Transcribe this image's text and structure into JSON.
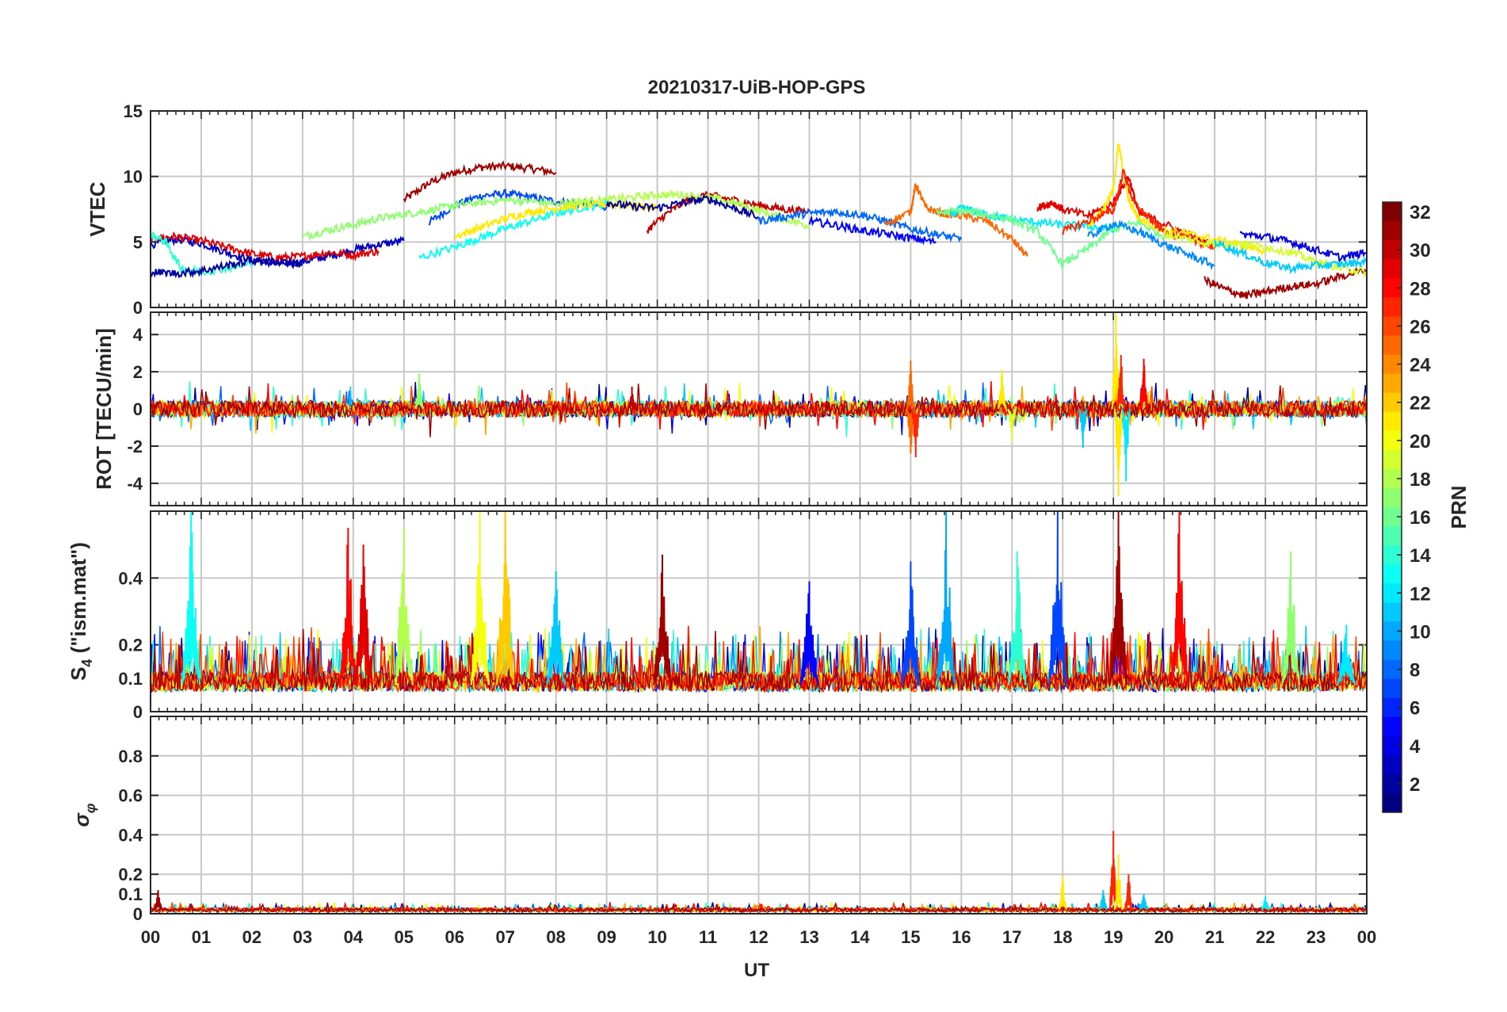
{
  "figure": {
    "title": "20210317-UiB-HOP-GPS",
    "xlabel": "UT",
    "x_tick_labels": [
      "00",
      "01",
      "02",
      "03",
      "04",
      "05",
      "06",
      "07",
      "08",
      "09",
      "10",
      "11",
      "12",
      "13",
      "14",
      "15",
      "16",
      "17",
      "18",
      "19",
      "20",
      "21",
      "22",
      "23",
      "00"
    ]
  },
  "colorbar": {
    "label": "PRN",
    "ticks": [
      2,
      4,
      6,
      8,
      10,
      12,
      14,
      16,
      18,
      20,
      22,
      24,
      26,
      28,
      30,
      32
    ],
    "range": [
      1,
      32
    ],
    "colormap": "jet"
  },
  "chart_data": [
    {
      "type": "line",
      "panel": "vtec",
      "ylabel": "VTEC",
      "xlim": [
        0,
        24
      ],
      "ylim": [
        0,
        15
      ],
      "y_ticks": [
        0,
        5,
        10,
        15
      ],
      "series": [
        {
          "prn": 31,
          "x": [
            5.0,
            5.5,
            6.0,
            6.5,
            7.0,
            7.5,
            8.0
          ],
          "y": [
            8.2,
            9.5,
            10.3,
            10.7,
            10.8,
            10.6,
            10.3
          ]
        },
        {
          "prn": 7,
          "x": [
            5.5,
            6.0,
            6.5,
            7.0,
            7.5,
            8.0,
            8.5,
            9.0
          ],
          "y": [
            6.5,
            7.8,
            8.5,
            8.7,
            8.4,
            8.1,
            7.9,
            7.7
          ]
        },
        {
          "prn": 3,
          "x": [
            0.0,
            0.5,
            1.0,
            1.5,
            2.0,
            2.5,
            3.0,
            3.5,
            4.0,
            4.5,
            5.0
          ],
          "y": [
            4.8,
            5.2,
            4.9,
            4.2,
            3.6,
            3.3,
            3.5,
            3.9,
            4.4,
            4.8,
            5.1
          ]
        },
        {
          "prn": 29,
          "x": [
            0.0,
            0.5,
            1.0,
            1.5,
            2.0,
            2.5,
            3.0,
            3.5,
            4.0,
            4.5
          ],
          "y": [
            5.3,
            5.4,
            5.1,
            4.6,
            4.1,
            3.8,
            3.9,
            4.2,
            4.0,
            4.3
          ]
        },
        {
          "prn": 17,
          "x": [
            3.0,
            3.5,
            4.0,
            4.5,
            5.0,
            5.5,
            6.0,
            6.5,
            7.0,
            7.5,
            8.0
          ],
          "y": [
            5.4,
            5.9,
            6.3,
            6.8,
            7.1,
            7.4,
            7.8,
            8.0,
            8.2,
            8.1,
            7.9
          ]
        },
        {
          "prn": 13,
          "x": [
            5.3,
            6.0,
            6.5,
            7.0,
            7.5,
            8.0,
            8.5,
            9.0
          ],
          "y": [
            3.8,
            4.6,
            5.3,
            6.0,
            6.6,
            7.2,
            7.6,
            7.9
          ]
        },
        {
          "prn": 21,
          "x": [
            6.0,
            6.5,
            7.0,
            7.5,
            8.0,
            8.5,
            9.0,
            9.5,
            10.0
          ],
          "y": [
            5.4,
            6.1,
            6.8,
            7.3,
            7.6,
            7.8,
            7.9,
            7.8,
            7.6
          ]
        },
        {
          "prn": 30,
          "x": [
            9.8,
            10.2,
            10.6,
            11.0,
            11.5,
            12.0,
            12.5,
            13.0
          ],
          "y": [
            5.9,
            7.2,
            8.2,
            8.6,
            8.2,
            7.8,
            7.5,
            7.3
          ]
        },
        {
          "prn": 18,
          "x": [
            8.0,
            8.5,
            9.0,
            9.5,
            10.0,
            10.5,
            11.0,
            11.5,
            12.0,
            12.5,
            13.0
          ],
          "y": [
            8.0,
            8.1,
            8.2,
            8.4,
            8.6,
            8.6,
            8.4,
            8.0,
            7.4,
            6.8,
            6.2
          ]
        },
        {
          "prn": 2,
          "x": [
            9.0,
            9.5,
            10.0,
            10.5,
            11.0,
            11.5,
            12.0
          ],
          "y": [
            8.0,
            7.7,
            7.6,
            8.0,
            8.3,
            7.6,
            6.9
          ]
        },
        {
          "prn": 8,
          "x": [
            12.0,
            12.5,
            13.0,
            13.5,
            14.0,
            14.5,
            15.0,
            15.5,
            16.0
          ],
          "y": [
            6.6,
            6.9,
            7.2,
            7.3,
            7.1,
            6.6,
            6.0,
            5.6,
            5.2
          ]
        },
        {
          "prn": 5,
          "x": [
            13.0,
            13.5,
            14.0,
            14.5,
            15.0,
            15.5
          ],
          "y": [
            6.6,
            6.3,
            5.9,
            5.6,
            5.3,
            5.0
          ]
        },
        {
          "prn": 25,
          "x": [
            14.5,
            15.0,
            15.1,
            15.3,
            15.6,
            16.0,
            16.5,
            17.0,
            17.3
          ],
          "y": [
            6.4,
            7.3,
            9.4,
            7.6,
            7.2,
            7.0,
            6.6,
            5.2,
            3.9
          ]
        },
        {
          "prn": 12,
          "x": [
            15.8,
            16.0,
            16.3,
            16.6,
            17.0,
            17.5,
            18.0,
            18.5,
            19.0
          ],
          "y": [
            7.0,
            7.6,
            7.3,
            7.0,
            6.7,
            6.5,
            6.3,
            6.2,
            6.0
          ]
        },
        {
          "prn": 16,
          "x": [
            15.5,
            16.0,
            16.5,
            17.0,
            17.5,
            18.0,
            18.5,
            19.0,
            19.5,
            20.0
          ],
          "y": [
            7.2,
            7.4,
            7.1,
            6.7,
            5.8,
            3.3,
            4.5,
            6.0,
            6.5,
            5.4
          ]
        },
        {
          "prn": 29,
          "x": [
            17.5,
            17.8,
            18.0,
            18.5,
            19.0,
            19.3,
            19.5,
            20.0,
            20.5,
            21.0
          ],
          "y": [
            7.6,
            8.0,
            7.5,
            7.0,
            8.0,
            10.0,
            7.2,
            6.4,
            5.5,
            4.7
          ]
        },
        {
          "prn": 21,
          "x": [
            18.5,
            18.8,
            19.0,
            19.1,
            19.3,
            19.5,
            20.0,
            20.5,
            21.0,
            21.5,
            22.0
          ],
          "y": [
            6.2,
            7.5,
            9.0,
            12.5,
            8.2,
            6.8,
            5.9,
            5.6,
            5.2,
            4.8,
            4.3
          ]
        },
        {
          "prn": 27,
          "x": [
            18.0,
            18.5,
            19.0,
            19.2,
            19.4,
            19.7,
            20.0,
            20.5,
            21.0
          ],
          "y": [
            5.8,
            6.6,
            7.4,
            10.4,
            8.0,
            6.8,
            5.8,
            5.2,
            4.6
          ]
        },
        {
          "prn": 9,
          "x": [
            18.5,
            19.0,
            19.5,
            20.0,
            20.5,
            21.0
          ],
          "y": [
            5.4,
            6.4,
            5.8,
            4.8,
            4.0,
            3.2
          ]
        },
        {
          "prn": 31,
          "x": [
            20.8,
            21.2,
            21.6,
            22.0,
            22.5,
            23.0,
            23.5,
            24.0
          ],
          "y": [
            2.1,
            1.4,
            0.9,
            1.2,
            1.6,
            1.8,
            2.4,
            2.9
          ]
        },
        {
          "prn": 19,
          "x": [
            20.0,
            20.5,
            21.0,
            21.5,
            22.0,
            22.5,
            23.0,
            23.5,
            24.0
          ],
          "y": [
            5.6,
            5.2,
            4.8,
            4.9,
            4.6,
            4.2,
            3.5,
            3.0,
            2.7
          ]
        },
        {
          "prn": 4,
          "x": [
            21.5,
            22.0,
            22.5,
            23.0,
            23.5,
            24.0
          ],
          "y": [
            5.6,
            5.4,
            5.0,
            4.4,
            3.8,
            4.2
          ]
        },
        {
          "prn": 11,
          "x": [
            21.0,
            21.5,
            22.0,
            22.5,
            23.0,
            23.5,
            24.0
          ],
          "y": [
            5.0,
            4.2,
            3.4,
            3.0,
            3.2,
            3.3,
            3.5
          ]
        },
        {
          "prn": 14,
          "x": [
            0.0,
            0.3,
            0.6,
            1.0,
            1.5,
            2.0
          ],
          "y": [
            5.6,
            5.0,
            3.0,
            2.7,
            3.0,
            3.4
          ]
        },
        {
          "prn": 2,
          "x": [
            0.0,
            0.5,
            1.0,
            1.5,
            2.0,
            2.5,
            3.0
          ],
          "y": [
            2.7,
            2.6,
            2.8,
            3.2,
            3.6,
            3.5,
            3.3
          ]
        }
      ]
    },
    {
      "type": "line",
      "panel": "rot",
      "ylabel": "ROT [TECU/min]",
      "xlim": [
        0,
        24
      ],
      "ylim": [
        -5.2,
        5.2
      ],
      "y_ticks": [
        -4,
        -2,
        0,
        2,
        4
      ],
      "notable_events": [
        {
          "x": 5.3,
          "y": 1.9,
          "prn": 17
        },
        {
          "x": 9.5,
          "y": 1.2,
          "prn": 30
        },
        {
          "x": 15.0,
          "y": -2.4,
          "prn": 25
        },
        {
          "x": 15.1,
          "y": -2.6,
          "prn": 27
        },
        {
          "x": 15.0,
          "y": 2.6,
          "prn": 25
        },
        {
          "x": 16.8,
          "y": 2.1,
          "prn": 21
        },
        {
          "x": 17.0,
          "y": -1.8,
          "prn": 19
        },
        {
          "x": 18.4,
          "y": -2.1,
          "prn": 11
        },
        {
          "x": 19.05,
          "y": 5.1,
          "prn": 21
        },
        {
          "x": 19.1,
          "y": -4.7,
          "prn": 21
        },
        {
          "x": 19.15,
          "y": 2.9,
          "prn": 27
        },
        {
          "x": 19.25,
          "y": -3.9,
          "prn": 12
        },
        {
          "x": 19.6,
          "y": 2.7,
          "prn": 28
        }
      ]
    },
    {
      "type": "line",
      "panel": "s4",
      "ylabel": "S4 (\"ism.mat\")",
      "xlim": [
        0,
        24
      ],
      "ylim": [
        0,
        0.6
      ],
      "y_ticks": [
        0,
        0.1,
        0.2,
        0.4
      ],
      "notable_events": [
        {
          "x": 0.8,
          "y": 0.6,
          "prn": 13
        },
        {
          "x": 3.9,
          "y": 0.55,
          "prn": 28
        },
        {
          "x": 4.2,
          "y": 0.5,
          "prn": 29
        },
        {
          "x": 5.0,
          "y": 0.55,
          "prn": 18
        },
        {
          "x": 6.5,
          "y": 0.6,
          "prn": 20
        },
        {
          "x": 7.0,
          "y": 0.6,
          "prn": 22
        },
        {
          "x": 8.0,
          "y": 0.42,
          "prn": 11
        },
        {
          "x": 10.1,
          "y": 0.47,
          "prn": 31
        },
        {
          "x": 13.0,
          "y": 0.39,
          "prn": 5
        },
        {
          "x": 15.0,
          "y": 0.45,
          "prn": 7
        },
        {
          "x": 15.7,
          "y": 0.6,
          "prn": 10
        },
        {
          "x": 17.1,
          "y": 0.48,
          "prn": 14
        },
        {
          "x": 17.9,
          "y": 0.6,
          "prn": 7
        },
        {
          "x": 19.1,
          "y": 0.6,
          "prn": 31
        },
        {
          "x": 20.3,
          "y": 0.6,
          "prn": 28
        },
        {
          "x": 22.5,
          "y": 0.48,
          "prn": 17
        },
        {
          "x": 23.6,
          "y": 0.26,
          "prn": 12
        }
      ]
    },
    {
      "type": "line",
      "panel": "sigma_phi",
      "ylabel": "σφ",
      "xlim": [
        0,
        24
      ],
      "ylim": [
        0,
        1.0
      ],
      "y_ticks": [
        0,
        0.1,
        0.2,
        0.4,
        0.6,
        0.8
      ],
      "notable_events": [
        {
          "x": 0.15,
          "y": 0.12,
          "prn": 31
        },
        {
          "x": 18.0,
          "y": 0.19,
          "prn": 21
        },
        {
          "x": 18.8,
          "y": 0.12,
          "prn": 11
        },
        {
          "x": 19.0,
          "y": 0.42,
          "prn": 27
        },
        {
          "x": 19.1,
          "y": 0.3,
          "prn": 21
        },
        {
          "x": 19.3,
          "y": 0.2,
          "prn": 27
        },
        {
          "x": 19.6,
          "y": 0.1,
          "prn": 11
        },
        {
          "x": 22.0,
          "y": 0.09,
          "prn": 12
        }
      ]
    }
  ]
}
